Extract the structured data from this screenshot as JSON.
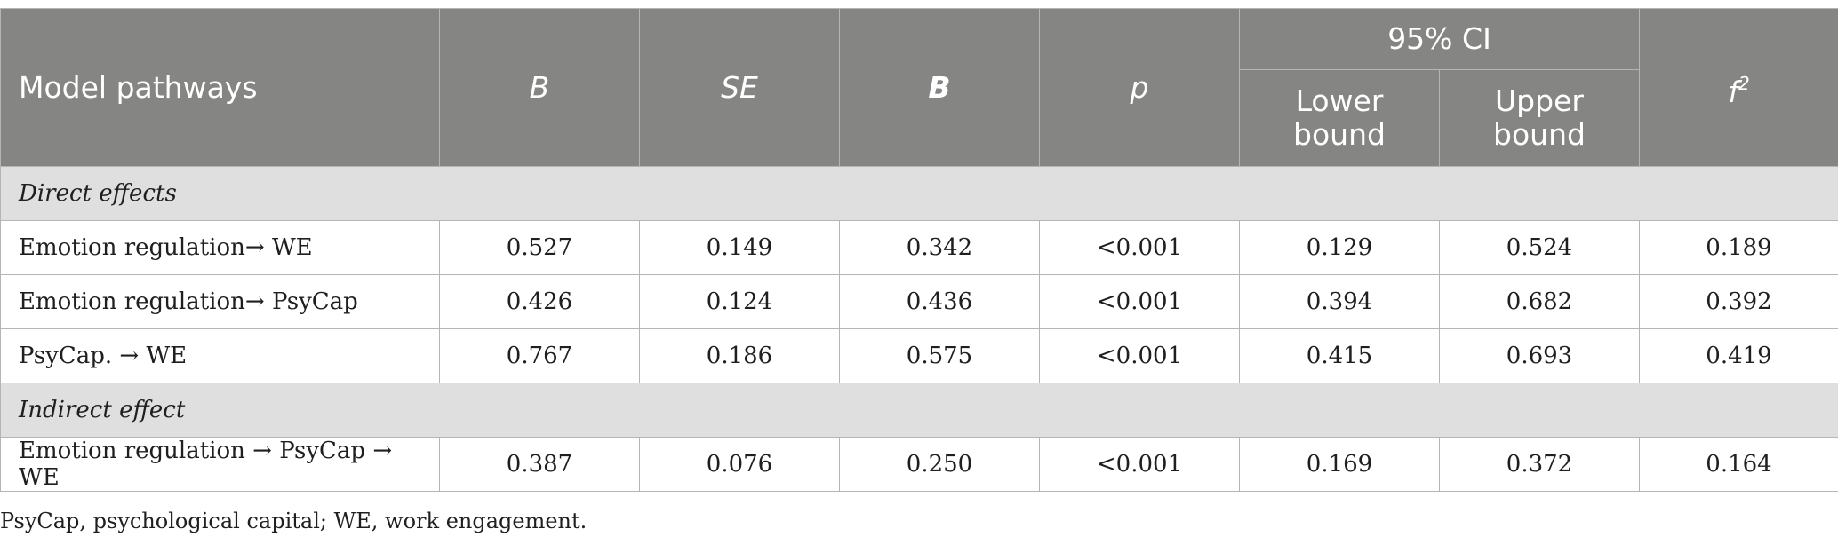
{
  "header": {
    "model_pathways": "Model pathways",
    "b_unstd": "B",
    "se": "SE",
    "b_std": "B",
    "p": "p",
    "ci": "95% CI",
    "lower": "Lower bound",
    "upper": "Upper bound",
    "f2_base": "f",
    "f2_sup": "2"
  },
  "sections": [
    {
      "label": "Direct effects",
      "rows": [
        {
          "path": "Emotion regulation→ WE",
          "b": "0.527",
          "se": "0.149",
          "beta": "0.342",
          "p": "<0.001",
          "lower": "0.129",
          "upper": "0.524",
          "f2": "0.189"
        },
        {
          "path": "Emotion regulation→ PsyCap",
          "b": "0.426",
          "se": "0.124",
          "beta": "0.436",
          "p": "<0.001",
          "lower": "0.394",
          "upper": "0.682",
          "f2": "0.392"
        },
        {
          "path": "PsyCap. → WE",
          "b": "0.767",
          "se": "0.186",
          "beta": "0.575",
          "p": "<0.001",
          "lower": "0.415",
          "upper": "0.693",
          "f2": "0.419"
        }
      ]
    },
    {
      "label": "Indirect effect",
      "rows": [
        {
          "path": "Emotion regulation → PsyCap → WE",
          "b": "0.387",
          "se": "0.076",
          "beta": "0.250",
          "p": "<0.001",
          "lower": "0.169",
          "upper": "0.372",
          "f2": "0.164"
        }
      ]
    }
  ],
  "footnote": "PsyCap, psychological capital; WE, work engagement."
}
